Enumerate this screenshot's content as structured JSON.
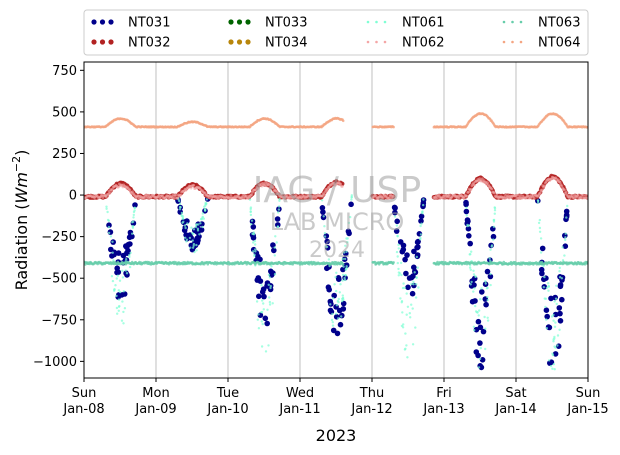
{
  "chart_data": {
    "type": "scatter",
    "xlabel": "2023",
    "ylabel_main": "Radiation (",
    "ylabel_unit": "Wm",
    "ylabel_exp": "−2",
    "ylabel_close": ")",
    "ylim": [
      -1100,
      800
    ],
    "xlim": [
      "2023-01-08",
      "2023-01-15"
    ],
    "yticks": [
      750,
      500,
      250,
      0,
      -250,
      -500,
      -750,
      -1000
    ],
    "ytick_labels": [
      "750",
      "500",
      "250",
      "0",
      "−250",
      "−500",
      "−750",
      "−1000"
    ],
    "xticks": [
      {
        "day": "Sun",
        "date": "Jan-08"
      },
      {
        "day": "Mon",
        "date": "Jan-09"
      },
      {
        "day": "Tue",
        "date": "Jan-10"
      },
      {
        "day": "Wed",
        "date": "Jan-11"
      },
      {
        "day": "Thu",
        "date": "Jan-12"
      },
      {
        "day": "Fri",
        "date": "Jan-13"
      },
      {
        "day": "Sat",
        "date": "Jan-14"
      },
      {
        "day": "Sun",
        "date": "Jan-15"
      }
    ],
    "grid": "vertical",
    "legend_position": "top",
    "watermark": [
      "IAG / USP",
      "LAB MICRO",
      "2024"
    ],
    "series": [
      {
        "name": "NT031",
        "color": "#00008b",
        "style": "dots",
        "kind": "neg_day_peak",
        "peaks": [
          -600,
          -300,
          -750,
          -820,
          -600,
          -1000,
          -1080
        ]
      },
      {
        "name": "NT032",
        "color": "#b22222",
        "style": "dots",
        "kind": "net_day",
        "peaks": [
          70,
          60,
          70,
          80,
          50,
          100,
          110
        ]
      },
      {
        "name": "NT033",
        "color": "#006400",
        "style": "dots",
        "kind": "none"
      },
      {
        "name": "NT034",
        "color": "#b8860b",
        "style": "dots",
        "kind": "none"
      },
      {
        "name": "NT061",
        "color": "#7fffd4",
        "style": "faint",
        "kind": "neg_day_peak",
        "peaks": [
          -780,
          -350,
          -950,
          -850,
          -1000,
          -1020,
          -1050
        ]
      },
      {
        "name": "NT062",
        "color": "#f4a6a6",
        "style": "faint",
        "kind": "net_day",
        "peaks": [
          60,
          50,
          65,
          70,
          45,
          90,
          100
        ]
      },
      {
        "name": "NT063",
        "color": "#66cdaa",
        "style": "faint",
        "kind": "longwave_in",
        "level": -410
      },
      {
        "name": "NT064",
        "color": "#f4a582",
        "style": "faint",
        "kind": "longwave_out",
        "level": 410,
        "day_bumps": [
          50,
          30,
          50,
          50,
          30,
          80,
          80
        ]
      }
    ]
  }
}
